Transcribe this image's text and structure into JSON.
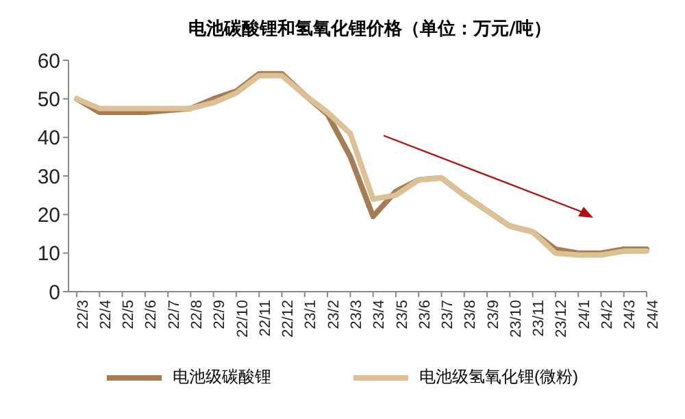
{
  "chart_data": {
    "type": "line",
    "title": "电池碳酸锂和氢氧化锂价格（单位：万元/吨）",
    "categories": [
      "22/3",
      "22/4",
      "22/5",
      "22/6",
      "22/7",
      "22/8",
      "22/9",
      "22/10",
      "22/11",
      "22/12",
      "23/1",
      "23/2",
      "23/3",
      "23/4",
      "23/5",
      "23/6",
      "23/7",
      "23/8",
      "23/9",
      "23/10",
      "23/11",
      "23/12",
      "24/1",
      "24/2",
      "24/3",
      "24/4"
    ],
    "series": [
      {
        "name": "电池级碳酸锂",
        "color": "#a67c52",
        "values": [
          50,
          46.5,
          46.5,
          46.5,
          47,
          47.5,
          50,
          52,
          56.5,
          56.5,
          51,
          46,
          35,
          19.5,
          26,
          29,
          29.5,
          25,
          21,
          17,
          15.5,
          11,
          10,
          10,
          11,
          11
        ]
      },
      {
        "name": "电池级氢氧化锂(微粉)",
        "color": "#dcc196",
        "values": [
          50,
          47.5,
          47.5,
          47.5,
          47.5,
          47.5,
          49,
          51.5,
          56,
          56,
          51,
          46.5,
          41,
          24,
          25,
          29,
          29.5,
          25,
          21,
          17,
          15.5,
          10,
          9.5,
          9.5,
          10.5,
          10.5
        ]
      }
    ],
    "ylim": [
      0,
      60
    ],
    "yticks": [
      0,
      10,
      20,
      30,
      40,
      50,
      60
    ],
    "legend": "bottom",
    "marker": "none",
    "line_style": "solid"
  }
}
